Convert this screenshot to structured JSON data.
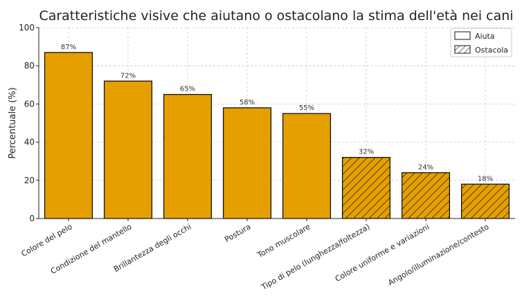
{
  "chart_data": {
    "type": "bar",
    "title": "Caratteristiche visive che aiutano o ostacolano la stima dell'età nei cani",
    "xlabel": "",
    "ylabel": "Percentuale (%)",
    "ylim": [
      0,
      100
    ],
    "yticks": [
      0,
      20,
      40,
      60,
      80,
      100
    ],
    "grid": true,
    "legend_position": "top-right",
    "bar_color": "#E5A000",
    "categories": [
      "Colore del pelo",
      "Condizione del mantello",
      "Brillantezza degli occhi",
      "Postura",
      "Tono muscolare",
      "Tipo di pelo (lunghezza/foltezza)",
      "Colore uniforme e variazioni",
      "Angolo/illuminazione/contesto"
    ],
    "values": [
      87,
      72,
      65,
      58,
      55,
      32,
      24,
      18
    ],
    "data_labels": [
      "87%",
      "72%",
      "65%",
      "58%",
      "55%",
      "32%",
      "24%",
      "18%"
    ],
    "groups": [
      "Aiuta",
      "Aiuta",
      "Aiuta",
      "Aiuta",
      "Aiuta",
      "Ostacola",
      "Ostacola",
      "Ostacola"
    ],
    "legend": [
      {
        "name": "Aiuta",
        "pattern": "solid"
      },
      {
        "name": "Ostacola",
        "pattern": "hatched"
      }
    ]
  }
}
